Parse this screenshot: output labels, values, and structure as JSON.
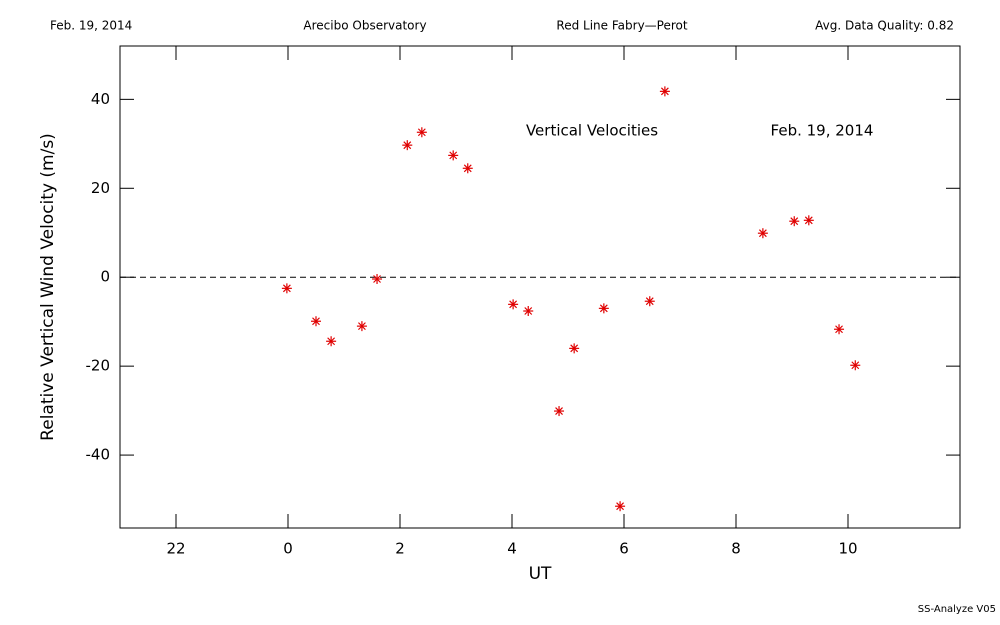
{
  "chart_data": {
    "type": "scatter",
    "header": [
      "Feb. 19, 2014",
      "Arecibo Observatory",
      "Red Line Fabry—Perot",
      "Avg. Data Quality: 0.82"
    ],
    "annotations": [
      "Vertical Velocities",
      "Feb. 19, 2014"
    ],
    "footer": "SS-Analyze V05",
    "x_label": "UT",
    "y_label": "Relative Vertical Wind Velocity (m/s)",
    "color": "#e00000",
    "reference_line": 0,
    "x": [
      23.98,
      24.5,
      24.77,
      25.32,
      25.59,
      26.13,
      26.39,
      26.95,
      27.21,
      28.02,
      28.29,
      28.84,
      29.11,
      29.64,
      29.93,
      30.46,
      30.73,
      32.48,
      33.04,
      33.3,
      33.84,
      34.13
    ],
    "values": [
      -2.5,
      -9.9,
      -14.4,
      -11.0,
      -0.4,
      29.7,
      32.6,
      27.4,
      24.5,
      -6.1,
      -7.6,
      -30.1,
      -16.0,
      -7.0,
      -51.5,
      -5.4,
      41.8,
      9.9,
      12.6,
      12.8,
      -11.7,
      -19.8
    ],
    "xlim": [
      21,
      36
    ],
    "xticks": [
      22,
      {
        "value": 24,
        "label": "0"
      },
      {
        "value": 26,
        "label": "2"
      },
      {
        "value": 28,
        "label": "4"
      },
      {
        "value": 30,
        "label": "6"
      },
      {
        "value": 32,
        "label": "8"
      },
      {
        "value": 34,
        "label": "10"
      }
    ],
    "ylim": [
      -56.4,
      52
    ],
    "yticks": [
      -40,
      -20,
      0,
      20,
      40
    ]
  }
}
